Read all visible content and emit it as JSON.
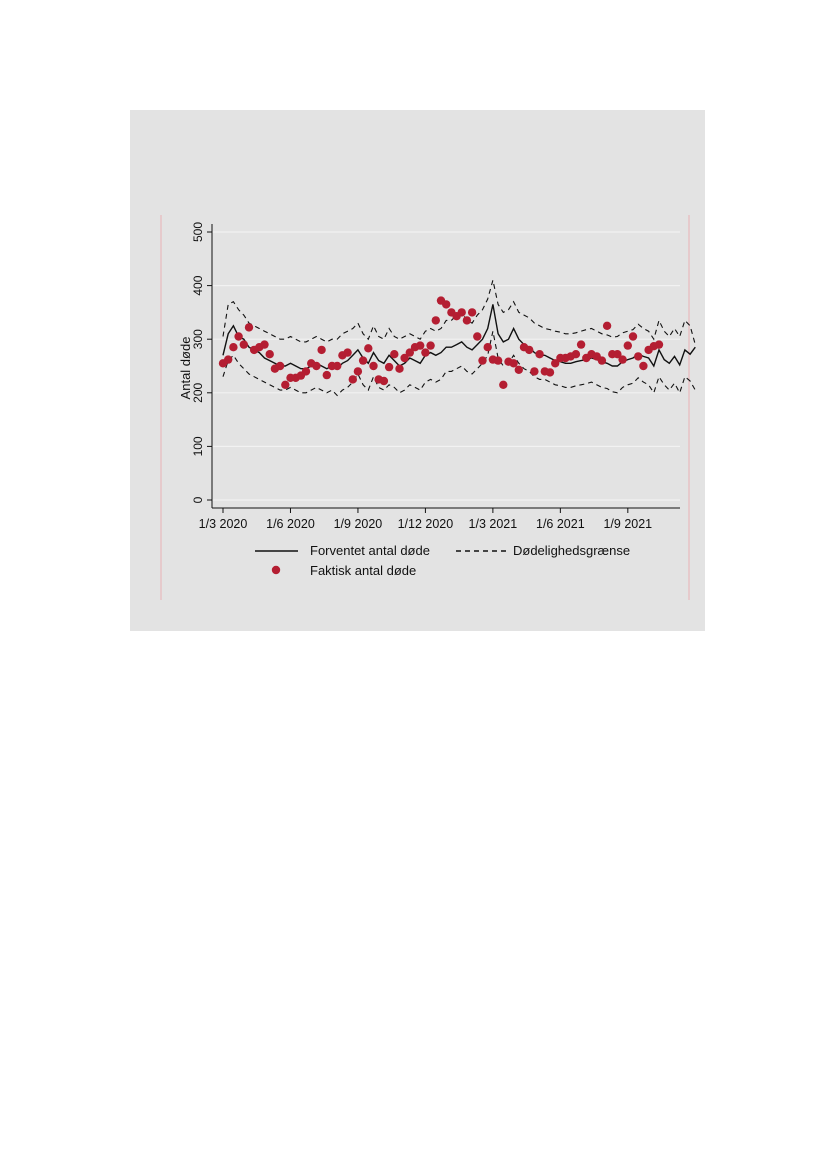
{
  "chart_data": {
    "type": "line",
    "ylabel": "Antal døde",
    "ylim": [
      0,
      500
    ],
    "yticks": [
      0,
      100,
      200,
      300,
      400,
      500
    ],
    "x_ticks": [
      {
        "week": 0,
        "label": "1/3 2020"
      },
      {
        "week": 13,
        "label": "1/6 2020"
      },
      {
        "week": 26,
        "label": "1/9 2020"
      },
      {
        "week": 39,
        "label": "1/12 2020"
      },
      {
        "week": 52,
        "label": "1/3 2021"
      },
      {
        "week": 65,
        "label": "1/6 2021"
      },
      {
        "week": 78,
        "label": "1/9 2021"
      }
    ],
    "legend": {
      "expected": "Forventet antal døde",
      "limit": "Dødelighedsgrænse",
      "actual": "Faktisk antal døde"
    },
    "grid": true,
    "colors": {
      "actual": "#b41e32",
      "line": "#111111",
      "background": "#e3e3e3",
      "grid": "#f2f2f2"
    },
    "series": [
      {
        "name": "Forventet antal døde",
        "style": "solid",
        "values": [
          270,
          310,
          325,
          305,
          300,
          285,
          280,
          275,
          265,
          260,
          255,
          250,
          250,
          255,
          250,
          245,
          245,
          250,
          255,
          250,
          245,
          250,
          245,
          255,
          260,
          270,
          280,
          265,
          255,
          275,
          260,
          255,
          270,
          260,
          250,
          255,
          265,
          260,
          255,
          270,
          275,
          270,
          275,
          285,
          285,
          290,
          295,
          285,
          280,
          290,
          300,
          320,
          365,
          310,
          295,
          300,
          320,
          300,
          290,
          285,
          275,
          270,
          270,
          265,
          260,
          258,
          255,
          255,
          258,
          260,
          262,
          265,
          262,
          258,
          255,
          250,
          250,
          258,
          262,
          265,
          272,
          268,
          265,
          250,
          280,
          262,
          255,
          268,
          252,
          280,
          272,
          285
        ]
      },
      {
        "name": "Dødelighedsgrænse (upper)",
        "style": "dashed",
        "values": [
          305,
          365,
          370,
          355,
          345,
          330,
          325,
          320,
          315,
          310,
          305,
          300,
          300,
          305,
          300,
          295,
          295,
          300,
          305,
          300,
          295,
          300,
          300,
          310,
          315,
          320,
          330,
          310,
          300,
          325,
          305,
          300,
          320,
          305,
          300,
          305,
          310,
          305,
          300,
          315,
          320,
          315,
          320,
          335,
          335,
          345,
          350,
          335,
          330,
          345,
          355,
          375,
          410,
          365,
          350,
          355,
          370,
          350,
          345,
          340,
          330,
          325,
          320,
          318,
          315,
          313,
          310,
          310,
          312,
          315,
          318,
          320,
          315,
          310,
          308,
          304,
          305,
          312,
          315,
          318,
          328,
          320,
          315,
          300,
          335,
          315,
          305,
          320,
          305,
          335,
          325,
          290
        ]
      },
      {
        "name": "Dødelighedsgrænse (lower)",
        "style": "dashed",
        "values": [
          230,
          260,
          270,
          255,
          245,
          235,
          230,
          225,
          220,
          215,
          210,
          205,
          205,
          210,
          205,
          200,
          200,
          205,
          210,
          205,
          200,
          205,
          195,
          205,
          210,
          220,
          235,
          215,
          205,
          230,
          210,
          205,
          215,
          210,
          200,
          205,
          215,
          210,
          205,
          220,
          225,
          220,
          225,
          240,
          240,
          245,
          250,
          240,
          235,
          245,
          255,
          270,
          315,
          265,
          250,
          255,
          270,
          255,
          245,
          240,
          230,
          225,
          225,
          220,
          215,
          213,
          210,
          210,
          213,
          215,
          217,
          220,
          215,
          210,
          208,
          202,
          200,
          210,
          215,
          218,
          228,
          220,
          215,
          200,
          230,
          215,
          205,
          218,
          200,
          230,
          222,
          205
        ]
      },
      {
        "name": "Faktisk antal døde",
        "style": "markers",
        "values": [
          255,
          262,
          285,
          305,
          290,
          322,
          280,
          285,
          290,
          272,
          245,
          250,
          215,
          228,
          228,
          232,
          240,
          255,
          250,
          280,
          233,
          250,
          250,
          270,
          275,
          225,
          240,
          260,
          283,
          250,
          225,
          222,
          248,
          272,
          245,
          265,
          275,
          285,
          288,
          275,
          288,
          335,
          372,
          365,
          350,
          343,
          350,
          335,
          350,
          305,
          260,
          285,
          262,
          260,
          215,
          258,
          255,
          243,
          285,
          280,
          240,
          272,
          240,
          238,
          255,
          265,
          265,
          268,
          272,
          290,
          265,
          272,
          268,
          260,
          325,
          272,
          272,
          262,
          288,
          305,
          268,
          250,
          280,
          287,
          290
        ]
      }
    ]
  }
}
